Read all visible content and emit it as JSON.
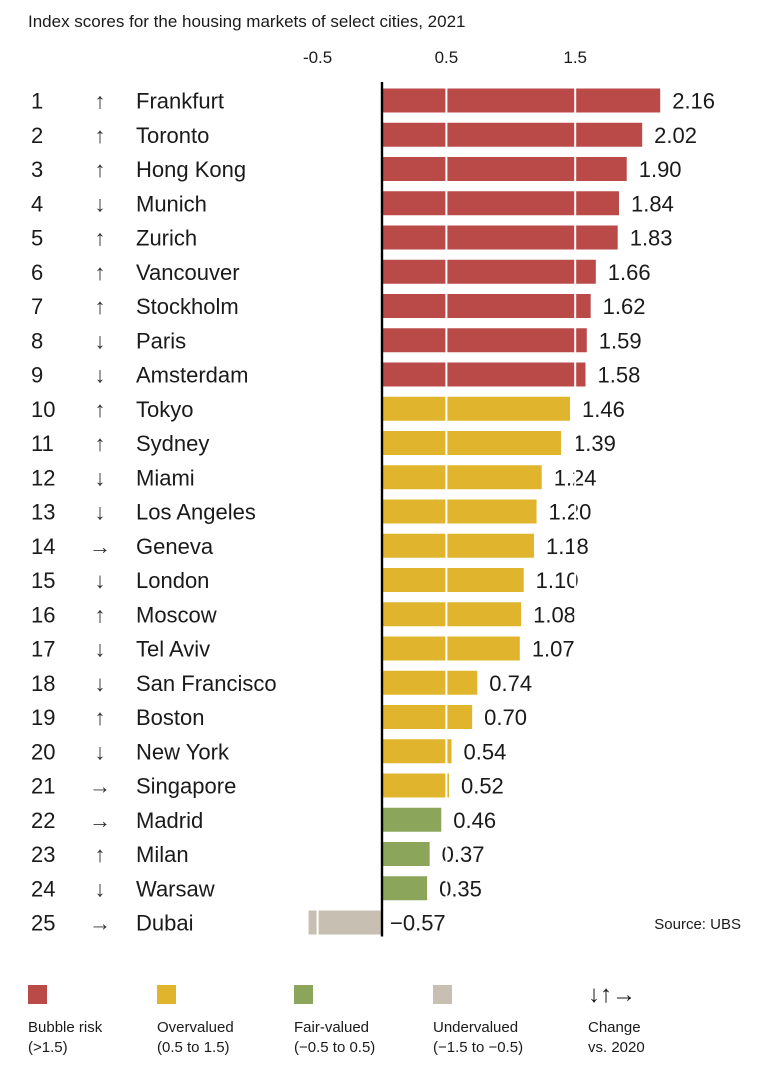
{
  "chart_data": {
    "type": "bar",
    "orientation": "horizontal",
    "title": "Index scores for the housing markets of select cities, 2021",
    "ticks": [
      -0.5,
      0.5,
      1.5
    ],
    "tick_labels": [
      "-0.5",
      "0.5",
      "1.5"
    ],
    "xlim": [
      -0.65,
      2.35
    ],
    "gridlines": true,
    "source": "Source: UBS",
    "rows": [
      {
        "rank": "1",
        "trend": "up",
        "city": "Frankfurt",
        "value": 2.16,
        "label": "2.16",
        "category": "bubble"
      },
      {
        "rank": "2",
        "trend": "up",
        "city": "Toronto",
        "value": 2.02,
        "label": "2.02",
        "category": "bubble"
      },
      {
        "rank": "3",
        "trend": "up",
        "city": "Hong Kong",
        "value": 1.9,
        "label": "1.90",
        "category": "bubble"
      },
      {
        "rank": "4",
        "trend": "down",
        "city": "Munich",
        "value": 1.84,
        "label": "1.84",
        "category": "bubble"
      },
      {
        "rank": "5",
        "trend": "up",
        "city": "Zurich",
        "value": 1.83,
        "label": "1.83",
        "category": "bubble"
      },
      {
        "rank": "6",
        "trend": "up",
        "city": "Vancouver",
        "value": 1.66,
        "label": "1.66",
        "category": "bubble"
      },
      {
        "rank": "7",
        "trend": "up",
        "city": "Stockholm",
        "value": 1.62,
        "label": "1.62",
        "category": "bubble"
      },
      {
        "rank": "8",
        "trend": "down",
        "city": "Paris",
        "value": 1.59,
        "label": "1.59",
        "category": "bubble"
      },
      {
        "rank": "9",
        "trend": "down",
        "city": "Amsterdam",
        "value": 1.58,
        "label": "1.58",
        "category": "bubble"
      },
      {
        "rank": "10",
        "trend": "up",
        "city": "Tokyo",
        "value": 1.46,
        "label": "1.46",
        "category": "overvalued"
      },
      {
        "rank": "11",
        "trend": "up",
        "city": "Sydney",
        "value": 1.39,
        "label": "1.39",
        "category": "overvalued"
      },
      {
        "rank": "12",
        "trend": "down",
        "city": "Miami",
        "value": 1.24,
        "label": "1.24",
        "category": "overvalued"
      },
      {
        "rank": "13",
        "trend": "down",
        "city": "Los Angeles",
        "value": 1.2,
        "label": "1.20",
        "category": "overvalued"
      },
      {
        "rank": "14",
        "trend": "right",
        "city": "Geneva",
        "value": 1.18,
        "label": "1.18",
        "category": "overvalued"
      },
      {
        "rank": "15",
        "trend": "down",
        "city": "London",
        "value": 1.1,
        "label": "1.10",
        "category": "overvalued"
      },
      {
        "rank": "16",
        "trend": "up",
        "city": "Moscow",
        "value": 1.08,
        "label": "1.08",
        "category": "overvalued"
      },
      {
        "rank": "17",
        "trend": "down",
        "city": "Tel Aviv",
        "value": 1.07,
        "label": "1.07",
        "category": "overvalued"
      },
      {
        "rank": "18",
        "trend": "down",
        "city": "San Francisco",
        "value": 0.74,
        "label": "0.74",
        "category": "overvalued"
      },
      {
        "rank": "19",
        "trend": "up",
        "city": "Boston",
        "value": 0.7,
        "label": "0.70",
        "category": "overvalued"
      },
      {
        "rank": "20",
        "trend": "down",
        "city": "New York",
        "value": 0.54,
        "label": "0.54",
        "category": "overvalued"
      },
      {
        "rank": "21",
        "trend": "right",
        "city": "Singapore",
        "value": 0.52,
        "label": "0.52",
        "category": "overvalued"
      },
      {
        "rank": "22",
        "trend": "right",
        "city": "Madrid",
        "value": 0.46,
        "label": "0.46",
        "category": "fair"
      },
      {
        "rank": "23",
        "trend": "up",
        "city": "Milan",
        "value": 0.37,
        "label": "0.37",
        "category": "fair"
      },
      {
        "rank": "24",
        "trend": "down",
        "city": "Warsaw",
        "value": 0.35,
        "label": "0.35",
        "category": "fair"
      },
      {
        "rank": "25",
        "trend": "right",
        "city": "Dubai",
        "value": -0.57,
        "label": "−0.57",
        "category": "undervalued"
      }
    ],
    "categories": {
      "bubble": {
        "color": "#b94a48"
      },
      "overvalued": {
        "color": "#e0b52d"
      },
      "fair": {
        "color": "#8ba65a"
      },
      "undervalued": {
        "color": "#c8bfb3"
      }
    },
    "trend_icons": {
      "up": "arrow-up-icon",
      "down": "arrow-down-icon",
      "right": "arrow-right-icon"
    },
    "trend_glyphs": {
      "up": "↑",
      "down": "↓",
      "right": "→"
    }
  },
  "legend": [
    {
      "name": "bubble",
      "color": "#b94a48",
      "label": "Bubble risk",
      "sub": "(>1.5)"
    },
    {
      "name": "overvalued",
      "color": "#e0b52d",
      "label": "Overvalued",
      "sub": "(0.5 to 1.5)"
    },
    {
      "name": "fair",
      "color": "#8ba65a",
      "label": "Fair-valued",
      "sub": "(−0.5 to 0.5)"
    },
    {
      "name": "undervalued",
      "color": "#c8bfb3",
      "label": "Undervalued",
      "sub": "(−1.5 to −0.5)"
    }
  ],
  "legend_change": {
    "icon": "arrows-icon",
    "symbols": "↓↑→",
    "label": "Change",
    "sub": "vs. 2020"
  }
}
